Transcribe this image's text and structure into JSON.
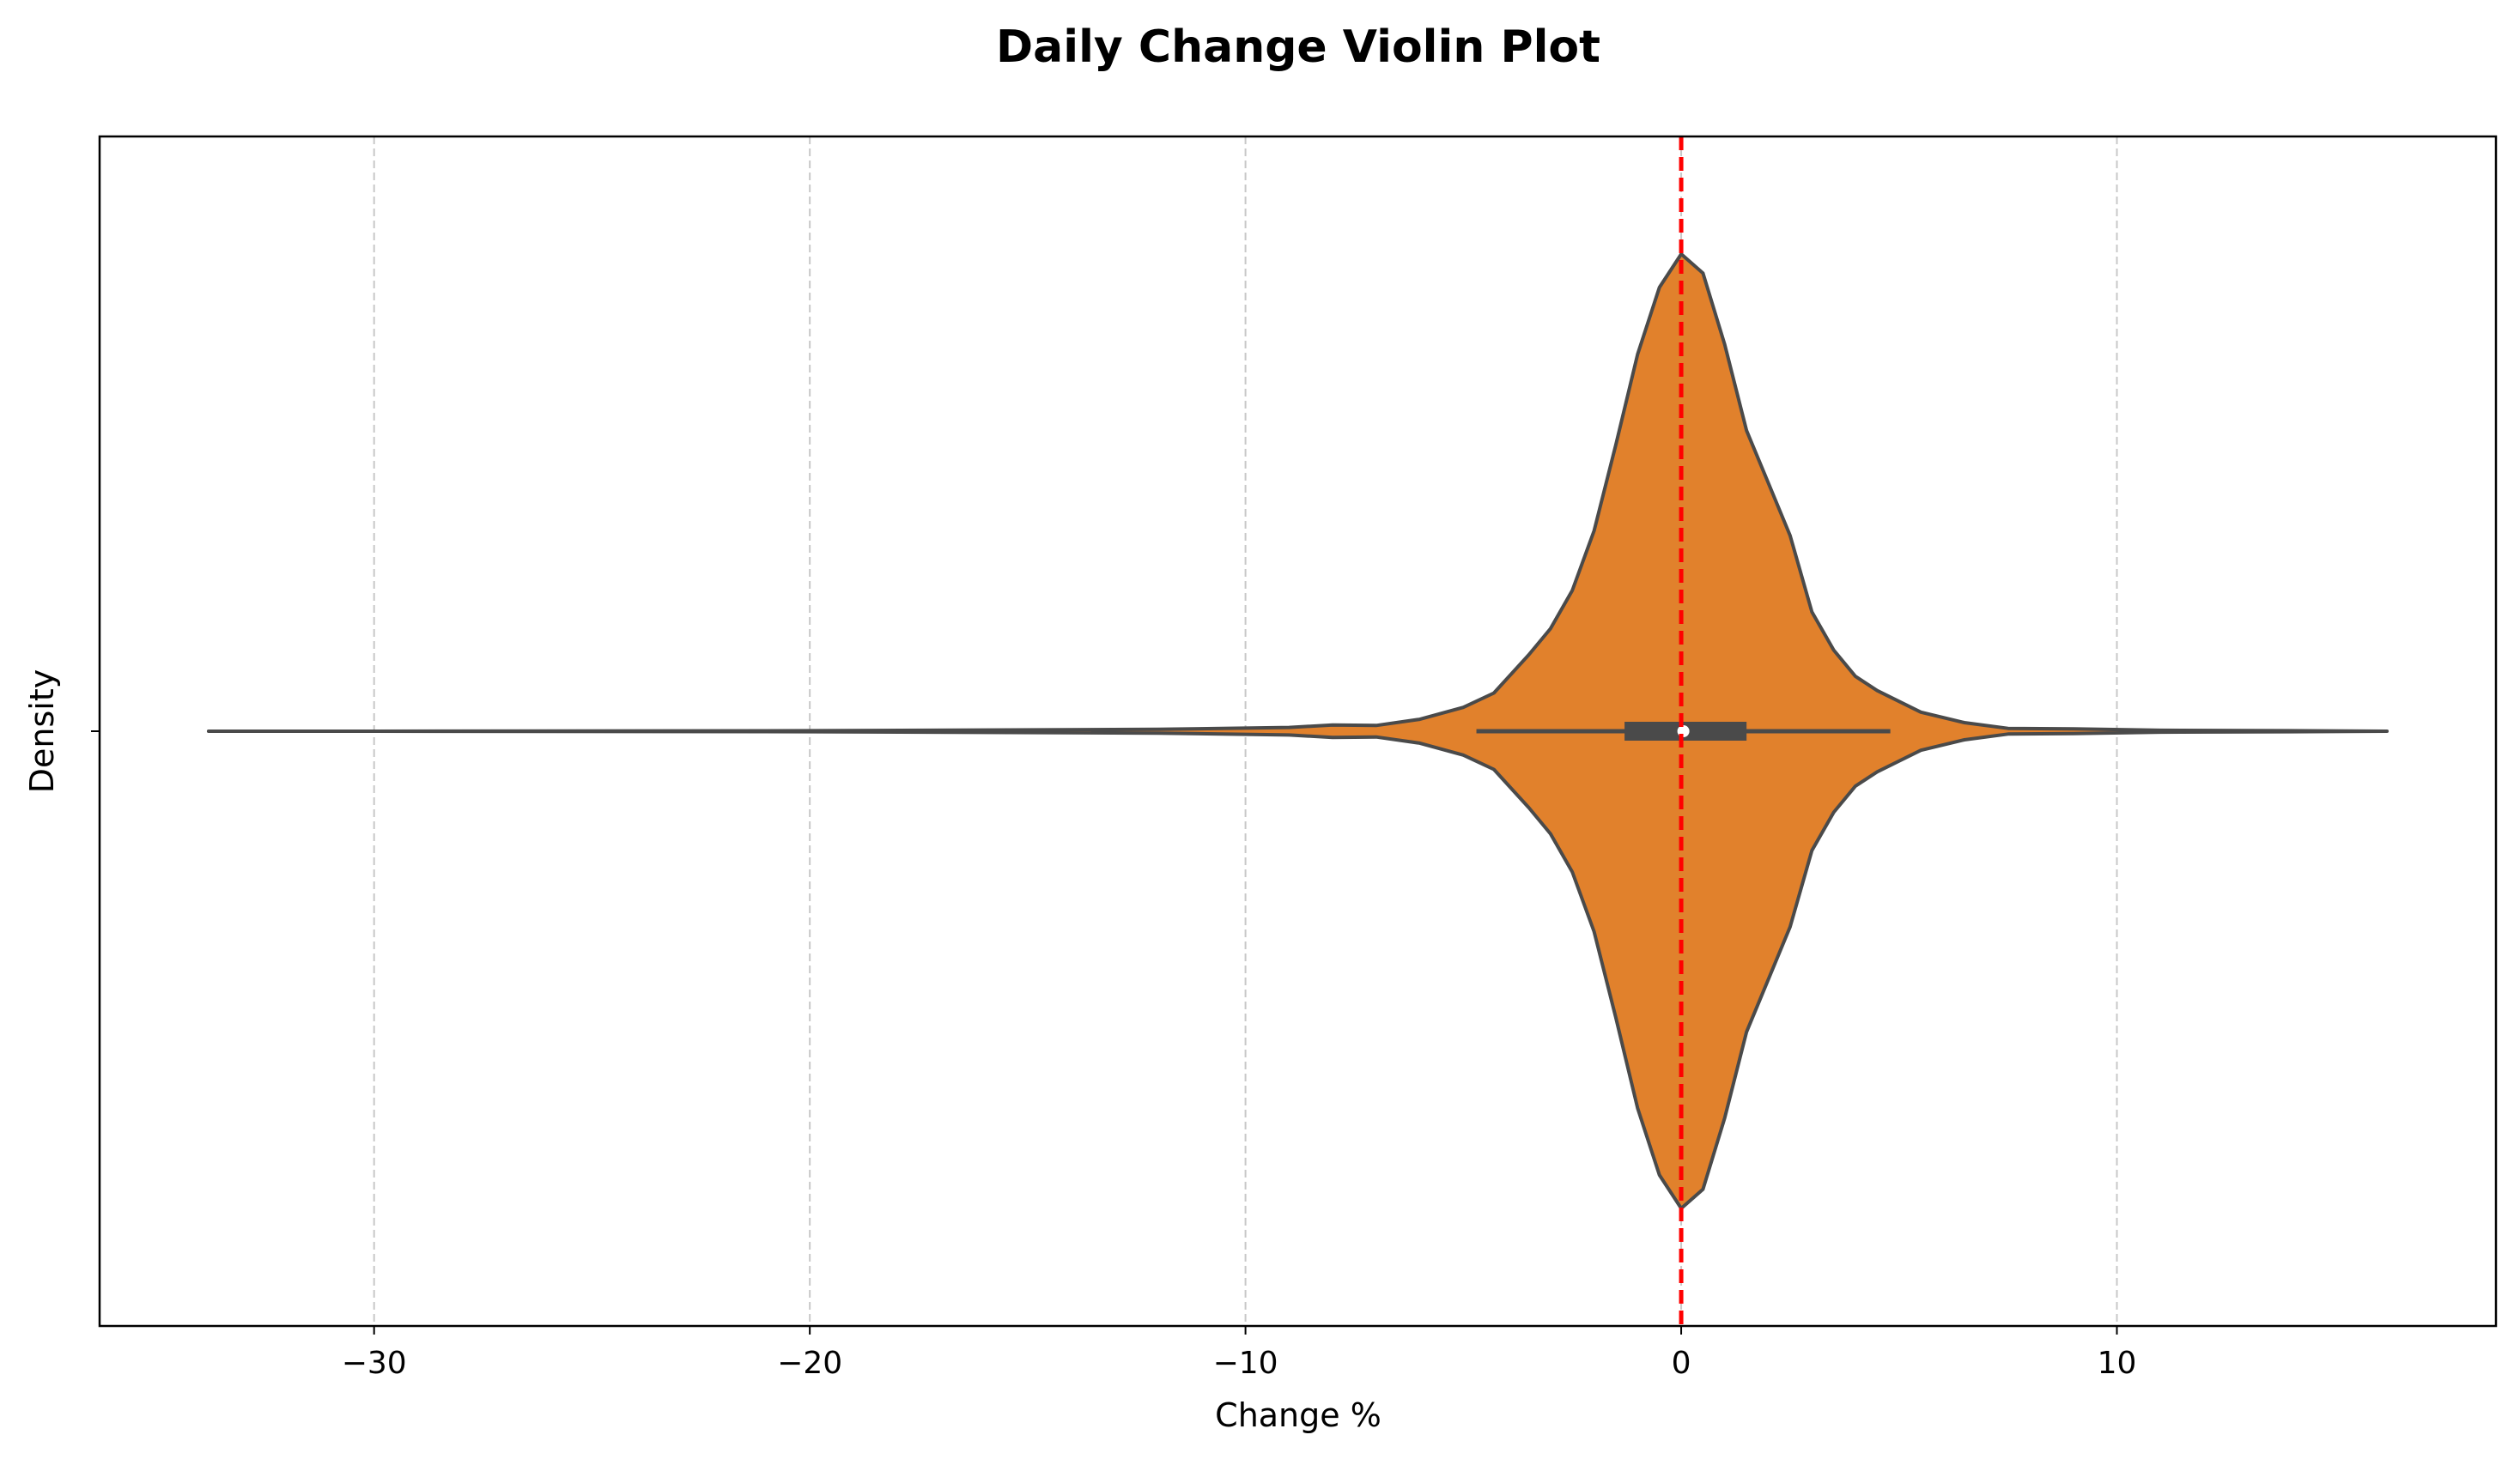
{
  "chart_data": {
    "type": "violin",
    "title": "Daily Change Violin Plot",
    "xlabel": "Change %",
    "ylabel": "Density",
    "xlim": [
      -36.3,
      18.7
    ],
    "xticks": [
      -30,
      -20,
      -10,
      0,
      10
    ],
    "xtick_labels": [
      "−30",
      "−20",
      "−10",
      "0",
      "10"
    ],
    "grid": "x-dashed",
    "colors": {
      "violin_fill": "#e1812c",
      "violin_edge": "#4a4a4a",
      "box": "#4a4a4a",
      "reference_line": "#ff0000",
      "grid": "#c8c8c8"
    },
    "reference_line": {
      "x": 0,
      "style": "dashed"
    },
    "box": {
      "q1": -1.3,
      "median": 0.05,
      "q3": 1.5,
      "whisker_low": -4.7,
      "whisker_high": 4.8
    },
    "range": {
      "min": -33.8,
      "max": 16.2
    },
    "density_profile": [
      {
        "x": -33.8,
        "density": 0.0
      },
      {
        "x": -30.0,
        "density": 0.0
      },
      {
        "x": -20.0,
        "density": 0.001
      },
      {
        "x": -12.0,
        "density": 0.004
      },
      {
        "x": -9.0,
        "density": 0.008
      },
      {
        "x": -8.0,
        "density": 0.013
      },
      {
        "x": -7.0,
        "density": 0.012
      },
      {
        "x": -6.0,
        "density": 0.025
      },
      {
        "x": -5.0,
        "density": 0.05
      },
      {
        "x": -4.3,
        "density": 0.08
      },
      {
        "x": -3.5,
        "density": 0.16
      },
      {
        "x": -3.0,
        "density": 0.215
      },
      {
        "x": -2.5,
        "density": 0.295
      },
      {
        "x": -2.0,
        "density": 0.42
      },
      {
        "x": -1.5,
        "density": 0.6
      },
      {
        "x": -1.0,
        "density": 0.79
      },
      {
        "x": -0.5,
        "density": 0.93
      },
      {
        "x": 0.0,
        "density": 1.0
      },
      {
        "x": 0.5,
        "density": 0.96
      },
      {
        "x": 1.0,
        "density": 0.81
      },
      {
        "x": 1.5,
        "density": 0.63
      },
      {
        "x": 2.0,
        "density": 0.52
      },
      {
        "x": 2.5,
        "density": 0.41
      },
      {
        "x": 3.0,
        "density": 0.25
      },
      {
        "x": 3.5,
        "density": 0.17
      },
      {
        "x": 4.0,
        "density": 0.115
      },
      {
        "x": 4.5,
        "density": 0.085
      },
      {
        "x": 5.5,
        "density": 0.04
      },
      {
        "x": 6.5,
        "density": 0.018
      },
      {
        "x": 7.5,
        "density": 0.006
      },
      {
        "x": 9.0,
        "density": 0.005
      },
      {
        "x": 11.0,
        "density": 0.002
      },
      {
        "x": 14.0,
        "density": 0.001
      },
      {
        "x": 16.2,
        "density": 0.0
      }
    ]
  }
}
